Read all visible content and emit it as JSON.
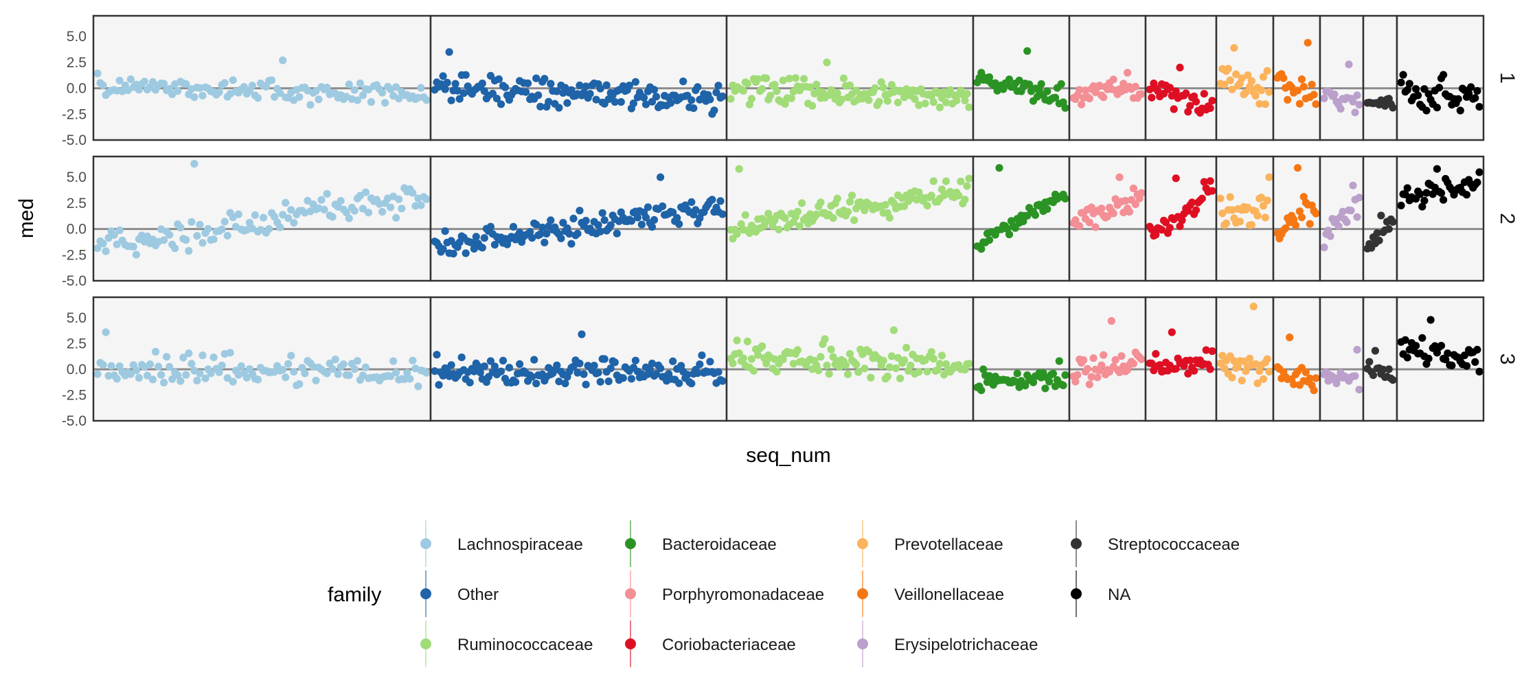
{
  "chart_data": {
    "type": "scatter",
    "title": "",
    "xlabel": "seq_num",
    "ylabel": "med",
    "ylim": [
      -5,
      7
    ],
    "yticks": [
      "-5.0",
      "-2.5",
      "0.0",
      "2.5",
      "5.0"
    ],
    "hline": 0,
    "grid": false,
    "rows": [
      "1",
      "2",
      "3"
    ],
    "legend": {
      "title": "family",
      "position": "bottom"
    },
    "families": [
      {
        "name": "Lachnospiraceae",
        "color": "#9ecae1",
        "n": 120,
        "rows": [
          {
            "start": 0.3,
            "end": -0.7,
            "spread": 0.85,
            "peak": 2.7
          },
          {
            "start": -1.6,
            "end": 3.2,
            "spread": 1.2,
            "peak": 6.3
          },
          {
            "start": 0.2,
            "end": -0.3,
            "spread": 1.2,
            "peak": 3.6
          }
        ]
      },
      {
        "name": "Other",
        "color": "#1f63a8",
        "n": 140,
        "rows": [
          {
            "start": 0.3,
            "end": -1.2,
            "spread": 1.1,
            "peak": 3.5
          },
          {
            "start": -1.7,
            "end": 2.3,
            "spread": 1.1,
            "peak": 5.0
          },
          {
            "start": -0.3,
            "end": -0.3,
            "spread": 1.1,
            "peak": 3.4
          }
        ]
      },
      {
        "name": "Ruminococcaceae",
        "color": "#a1dc78",
        "n": 115,
        "rows": [
          {
            "start": 0.0,
            "end": -1.0,
            "spread": 1.1,
            "peak": 2.5
          },
          {
            "start": 0.0,
            "end": 3.8,
            "spread": 1.1,
            "peak": 5.8
          },
          {
            "start": 1.5,
            "end": 0.2,
            "spread": 1.1,
            "peak": 3.8
          }
        ]
      },
      {
        "name": "Bacteroidaceae",
        "color": "#2b9324",
        "n": 45,
        "rows": [
          {
            "start": 0.8,
            "end": -1.0,
            "spread": 0.9,
            "peak": 3.6
          },
          {
            "start": -1.3,
            "end": 3.5,
            "spread": 0.6,
            "peak": 5.9
          },
          {
            "start": -1.0,
            "end": -0.8,
            "spread": 0.8,
            "peak": 0.8
          }
        ]
      },
      {
        "name": "Porphyromonadaceae",
        "color": "#f38f95",
        "n": 35,
        "rows": [
          {
            "start": -0.3,
            "end": -0.3,
            "spread": 0.8,
            "peak": 1.5
          },
          {
            "start": 0.5,
            "end": 3.0,
            "spread": 0.9,
            "peak": 5.0
          },
          {
            "start": -0.4,
            "end": 0.8,
            "spread": 1.0,
            "peak": 4.7
          }
        ]
      },
      {
        "name": "Coriobacteriaceae",
        "color": "#de0f23",
        "n": 32,
        "rows": [
          {
            "start": 0.0,
            "end": -2.0,
            "spread": 0.9,
            "peak": 2.0
          },
          {
            "start": -0.5,
            "end": 3.8,
            "spread": 1.0,
            "peak": 4.9
          },
          {
            "start": 0.2,
            "end": 0.5,
            "spread": 1.0,
            "peak": 3.6
          }
        ]
      },
      {
        "name": "Prevotellaceae",
        "color": "#fbb35c",
        "n": 26,
        "rows": [
          {
            "start": 1.5,
            "end": 0.0,
            "spread": 1.6,
            "peak": 3.9
          },
          {
            "start": 1.0,
            "end": 2.5,
            "spread": 1.4,
            "peak": 5.0
          },
          {
            "start": 0.8,
            "end": 0.0,
            "spread": 1.5,
            "peak": 6.1
          }
        ]
      },
      {
        "name": "Veillonellaceae",
        "color": "#f57714",
        "n": 20,
        "rows": [
          {
            "start": 1.0,
            "end": -1.0,
            "spread": 1.3,
            "peak": 4.4
          },
          {
            "start": 0.0,
            "end": 2.5,
            "spread": 1.2,
            "peak": 5.9
          },
          {
            "start": -0.3,
            "end": -0.8,
            "spread": 1.0,
            "peak": 3.1
          }
        ]
      },
      {
        "name": "Erysipelotrichaceae",
        "color": "#bba0cc",
        "n": 18,
        "rows": [
          {
            "start": -0.5,
            "end": -1.5,
            "spread": 0.9,
            "peak": 2.3
          },
          {
            "start": -1.0,
            "end": 2.8,
            "spread": 0.9,
            "peak": 4.2
          },
          {
            "start": -0.5,
            "end": -1.5,
            "spread": 0.8,
            "peak": 1.9
          }
        ]
      },
      {
        "name": "Streptococcaceae",
        "color": "#333333",
        "n": 14,
        "rows": [
          {
            "start": -1.5,
            "end": -2.0,
            "spread": 0.6,
            "peak": -1.0
          },
          {
            "start": -1.8,
            "end": 0.8,
            "spread": 0.5,
            "peak": 1.3
          },
          {
            "start": 0.5,
            "end": -0.5,
            "spread": 0.8,
            "peak": 1.8
          }
        ]
      },
      {
        "name": "NA",
        "color": "#000000",
        "n": 38,
        "rows": [
          {
            "start": -0.5,
            "end": -1.0,
            "spread": 1.3,
            "peak": 1.3
          },
          {
            "start": 3.0,
            "end": 4.5,
            "spread": 1.0,
            "peak": 5.8
          },
          {
            "start": 2.5,
            "end": 1.0,
            "spread": 1.2,
            "peak": 4.8
          }
        ]
      }
    ]
  }
}
